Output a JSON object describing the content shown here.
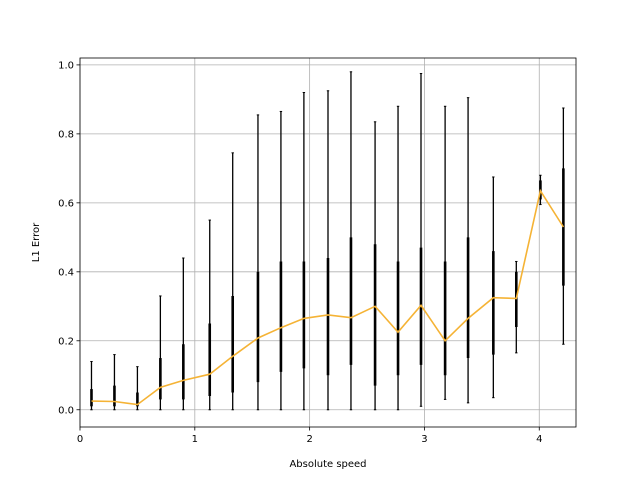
{
  "chart_data": {
    "type": "line",
    "title": "",
    "xlabel": "Absolute speed",
    "ylabel": "L1 Error",
    "xlim": [
      0,
      4.32
    ],
    "ylim": [
      -0.05,
      1.02
    ],
    "grid": true,
    "xticks": [
      0,
      1,
      2,
      3,
      4
    ],
    "yticks": [
      0.0,
      0.2,
      0.4,
      0.6,
      0.8,
      1.0
    ],
    "xtick_labels": [
      "0",
      "1",
      "2",
      "3",
      "4"
    ],
    "ytick_labels": [
      "0.0",
      "0.2",
      "0.4",
      "0.6",
      "0.8",
      "1.0"
    ],
    "line_color": "#f5b335",
    "bar_color": "#000000",
    "series": [
      {
        "x": [
          0.1,
          0.3,
          0.5,
          0.7,
          0.9,
          1.13,
          1.33,
          1.55,
          1.75,
          1.95,
          2.16,
          2.36,
          2.57,
          2.77,
          2.97,
          3.18,
          3.38,
          3.6,
          3.8,
          4.01,
          4.21
        ],
        "y": [
          0.025,
          0.024,
          0.015,
          0.065,
          0.085,
          0.103,
          0.155,
          0.208,
          0.238,
          0.265,
          0.275,
          0.267,
          0.3,
          0.225,
          0.303,
          0.2,
          0.265,
          0.325,
          0.323,
          0.635,
          0.53
        ]
      }
    ],
    "errorbars": [
      {
        "x": 0.1,
        "min": 0.0,
        "max": 0.14,
        "q1": 0.01,
        "q3": 0.06
      },
      {
        "x": 0.3,
        "min": 0.0,
        "max": 0.16,
        "q1": 0.01,
        "q3": 0.07
      },
      {
        "x": 0.5,
        "min": 0.0,
        "max": 0.125,
        "q1": 0.01,
        "q3": 0.05
      },
      {
        "x": 0.7,
        "min": 0.0,
        "max": 0.33,
        "q1": 0.03,
        "q3": 0.15
      },
      {
        "x": 0.9,
        "min": 0.0,
        "max": 0.44,
        "q1": 0.03,
        "q3": 0.19
      },
      {
        "x": 1.13,
        "min": 0.0,
        "max": 0.55,
        "q1": 0.04,
        "q3": 0.25
      },
      {
        "x": 1.33,
        "min": 0.0,
        "max": 0.745,
        "q1": 0.05,
        "q3": 0.33
      },
      {
        "x": 1.55,
        "min": 0.0,
        "max": 0.855,
        "q1": 0.08,
        "q3": 0.4
      },
      {
        "x": 1.75,
        "min": 0.0,
        "max": 0.865,
        "q1": 0.11,
        "q3": 0.43
      },
      {
        "x": 1.95,
        "min": 0.0,
        "max": 0.92,
        "q1": 0.12,
        "q3": 0.43
      },
      {
        "x": 2.16,
        "min": 0.0,
        "max": 0.925,
        "q1": 0.1,
        "q3": 0.44
      },
      {
        "x": 2.36,
        "min": 0.0,
        "max": 0.98,
        "q1": 0.13,
        "q3": 0.5
      },
      {
        "x": 2.57,
        "min": 0.0,
        "max": 0.835,
        "q1": 0.07,
        "q3": 0.48
      },
      {
        "x": 2.77,
        "min": 0.0,
        "max": 0.88,
        "q1": 0.1,
        "q3": 0.43
      },
      {
        "x": 2.97,
        "min": 0.01,
        "max": 0.975,
        "q1": 0.13,
        "q3": 0.47
      },
      {
        "x": 3.18,
        "min": 0.03,
        "max": 0.88,
        "q1": 0.1,
        "q3": 0.43
      },
      {
        "x": 3.38,
        "min": 0.02,
        "max": 0.905,
        "q1": 0.15,
        "q3": 0.5
      },
      {
        "x": 3.6,
        "min": 0.035,
        "max": 0.675,
        "q1": 0.16,
        "q3": 0.46
      },
      {
        "x": 3.8,
        "min": 0.165,
        "max": 0.43,
        "q1": 0.24,
        "q3": 0.4
      },
      {
        "x": 4.01,
        "min": 0.595,
        "max": 0.68,
        "q1": 0.61,
        "q3": 0.665
      },
      {
        "x": 4.21,
        "min": 0.19,
        "max": 0.875,
        "q1": 0.36,
        "q3": 0.7
      }
    ]
  }
}
